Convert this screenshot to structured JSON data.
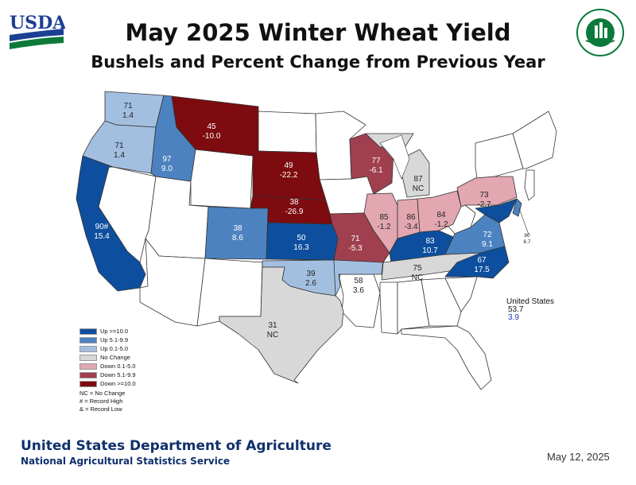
{
  "title": "May 2025 Winter Wheat Yield",
  "subtitle": "Bushels and Percent Change from Previous Year",
  "usda_logo_text": "USDA",
  "counts_logo_text": "AGRICULTURE COUNTS",
  "colors": {
    "up_10": "#0d4f9e",
    "up_5": "#4c82c0",
    "up_0": "#a3bfe0",
    "no_change": "#d8d8d8",
    "down_0": "#e2a7b1",
    "down_5": "#a0404e",
    "down_10": "#7d0b0f",
    "no_data": "#ffffff"
  },
  "states": [
    {
      "code": "WA",
      "yield": "71",
      "change": "1.4",
      "category": "up_0"
    },
    {
      "code": "OR",
      "yield": "71",
      "change": "1.4",
      "category": "up_0"
    },
    {
      "code": "ID",
      "yield": "97",
      "change": "9.0",
      "category": "up_5"
    },
    {
      "code": "MT",
      "yield": "45",
      "change": "-10.0",
      "category": "down_10"
    },
    {
      "code": "CA",
      "yield": "90#",
      "change": "15.4",
      "category": "up_10"
    },
    {
      "code": "SD",
      "yield": "49",
      "change": "-22.2",
      "category": "down_10"
    },
    {
      "code": "NE",
      "yield": "38",
      "change": "-26.9",
      "category": "down_10"
    },
    {
      "code": "CO",
      "yield": "38",
      "change": "8.6",
      "category": "up_5"
    },
    {
      "code": "KS",
      "yield": "50",
      "change": "16.3",
      "category": "up_10"
    },
    {
      "code": "OK",
      "yield": "39",
      "change": "2.6",
      "category": "up_0"
    },
    {
      "code": "TX",
      "yield": "31",
      "change": "NC",
      "category": "no_change"
    },
    {
      "code": "AR",
      "yield": "58",
      "change": "3.6",
      "category": "up_0"
    },
    {
      "code": "MO",
      "yield": "71",
      "change": "-5.3",
      "category": "down_5"
    },
    {
      "code": "WI",
      "yield": "77",
      "change": "-6.1",
      "category": "down_5"
    },
    {
      "code": "MI",
      "yield": "87",
      "change": "NC",
      "category": "no_change"
    },
    {
      "code": "IL",
      "yield": "85",
      "change": "-1.2",
      "category": "down_0"
    },
    {
      "code": "IN",
      "yield": "86",
      "change": "-3.4",
      "category": "down_0"
    },
    {
      "code": "OH",
      "yield": "84",
      "change": "-1.2",
      "category": "down_0"
    },
    {
      "code": "PA",
      "yield": "73",
      "change": "-2.7",
      "category": "down_0"
    },
    {
      "code": "KY",
      "yield": "83",
      "change": "10.7",
      "category": "up_10"
    },
    {
      "code": "TN",
      "yield": "75",
      "change": "NC",
      "category": "no_change"
    },
    {
      "code": "VA",
      "yield": "72",
      "change": "9.1",
      "category": "up_5"
    },
    {
      "code": "NC",
      "yield": "67",
      "change": "17.5",
      "category": "up_10"
    },
    {
      "code": "MD",
      "yield": "",
      "change": "",
      "category": "up_10"
    },
    {
      "code": "DE",
      "yield": "80",
      "change": "6.7",
      "category": "up_5"
    }
  ],
  "legend": [
    {
      "label": "Up >=10.0",
      "category": "up_10"
    },
    {
      "label": "Up 5.1-9.9",
      "category": "up_5"
    },
    {
      "label": "Up 0.1-5.0",
      "category": "up_0"
    },
    {
      "label": "No Change",
      "category": "no_change"
    },
    {
      "label": "Down 0.1-5.0",
      "category": "down_0"
    },
    {
      "label": "Down 5.1-9.9",
      "category": "down_5"
    },
    {
      "label": "Down >=10.0",
      "category": "down_10"
    }
  ],
  "legend_notes": [
    "NC = No Change",
    "# = Record High",
    "& = Record Low"
  ],
  "national": {
    "label": "United States",
    "yield": "53.7",
    "change": "3.9"
  },
  "footer": {
    "org": "United States Department of Agriculture",
    "sub": "National Agricultural Statistics Service",
    "date": "May 12, 2025"
  }
}
